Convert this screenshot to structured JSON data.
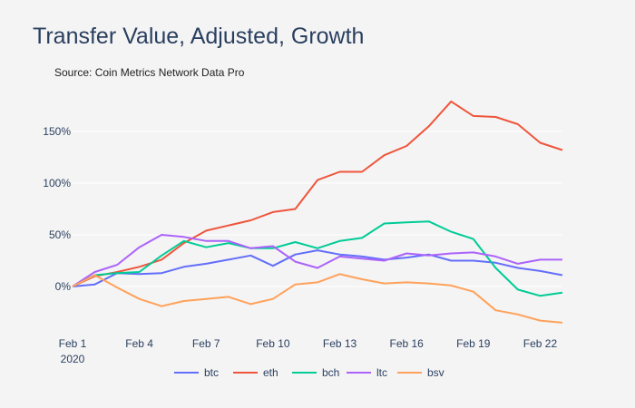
{
  "chart_data": {
    "type": "line",
    "title": "Transfer Value, Adjusted, Growth",
    "subtitle": "Source: Coin Metrics Network Data Pro",
    "xlabel": "",
    "ylabel": "",
    "x": [
      "Feb 1",
      "Feb 2",
      "Feb 3",
      "Feb 4",
      "Feb 5",
      "Feb 6",
      "Feb 7",
      "Feb 8",
      "Feb 9",
      "Feb 10",
      "Feb 11",
      "Feb 12",
      "Feb 13",
      "Feb 14",
      "Feb 15",
      "Feb 16",
      "Feb 17",
      "Feb 18",
      "Feb 19",
      "Feb 20",
      "Feb 21",
      "Feb 22",
      "Feb 23"
    ],
    "x_ticks": [
      {
        "index": 0,
        "label": "Feb 1",
        "sublabel": "2020"
      },
      {
        "index": 3,
        "label": "Feb 4"
      },
      {
        "index": 6,
        "label": "Feb 7"
      },
      {
        "index": 9,
        "label": "Feb 10"
      },
      {
        "index": 12,
        "label": "Feb 13"
      },
      {
        "index": 15,
        "label": "Feb 16"
      },
      {
        "index": 18,
        "label": "Feb 19"
      },
      {
        "index": 21,
        "label": "Feb 22"
      }
    ],
    "y_ticks": [
      {
        "value": 0,
        "label": "0%"
      },
      {
        "value": 50,
        "label": "50%"
      },
      {
        "value": 100,
        "label": "100%"
      },
      {
        "value": 150,
        "label": "150%"
      }
    ],
    "ylim": [
      -42,
      188
    ],
    "grid": true,
    "legend": "bottom-center",
    "series": [
      {
        "name": "btc",
        "color": "#636efa",
        "values": [
          0,
          2,
          13,
          12,
          13,
          19,
          22,
          26,
          30,
          20,
          31,
          35,
          31,
          29,
          26,
          28,
          31,
          25,
          25,
          23,
          18,
          15,
          11
        ]
      },
      {
        "name": "eth",
        "color": "#ef553b",
        "values": [
          0,
          10,
          14,
          19,
          26,
          42,
          54,
          59,
          64,
          72,
          75,
          103,
          111,
          111,
          127,
          136,
          155,
          179,
          165,
          164,
          157,
          139,
          132
        ]
      },
      {
        "name": "bch",
        "color": "#00cc96",
        "values": [
          0,
          11,
          13,
          14,
          30,
          44,
          38,
          42,
          37,
          37,
          43,
          37,
          44,
          47,
          61,
          62,
          63,
          53,
          46,
          18,
          -3,
          -9,
          -6
        ]
      },
      {
        "name": "ltc",
        "color": "#ab63fa",
        "values": [
          0,
          14,
          21,
          38,
          50,
          48,
          44,
          44,
          37,
          39,
          24,
          18,
          29,
          27,
          25,
          32,
          30,
          32,
          33,
          29,
          22,
          26,
          26
        ]
      },
      {
        "name": "bsv",
        "color": "#ffa15a",
        "values": [
          0,
          11,
          -1,
          -12,
          -19,
          -14,
          -12,
          -10,
          -17,
          -12,
          2,
          4,
          12,
          7,
          3,
          4,
          3,
          1,
          -5,
          -23,
          -27,
          -33,
          -35
        ]
      }
    ]
  }
}
